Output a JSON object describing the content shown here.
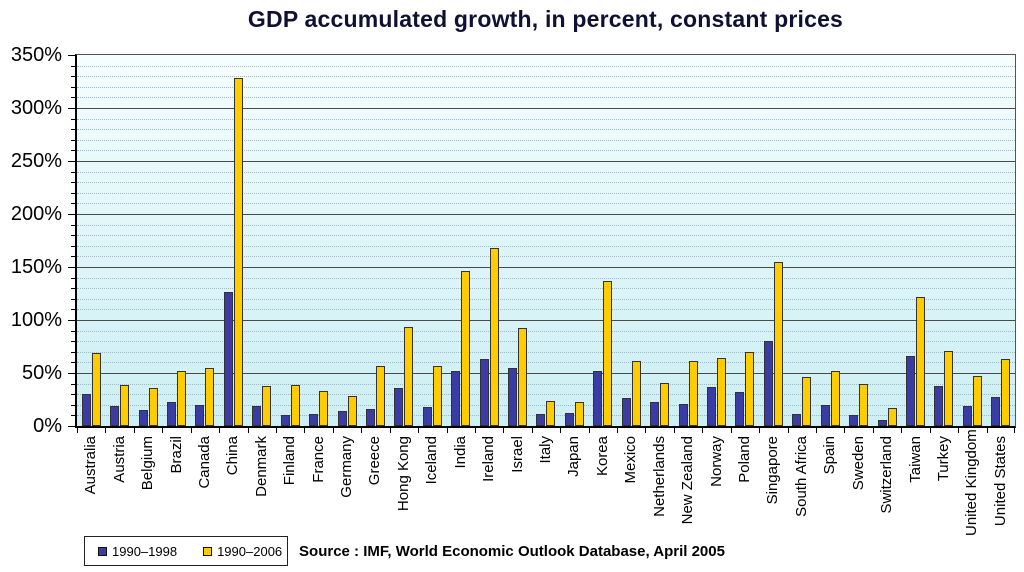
{
  "chart_data": {
    "type": "bar",
    "title": "GDP accumulated growth, in percent, constant prices",
    "source": "Source : IMF, World Economic Outlook Database, April 2005",
    "categories": [
      "Australia",
      "Austria",
      "Belgium",
      "Brazil",
      "Canada",
      "China",
      "Denmark",
      "Finland",
      "France",
      "Germany",
      "Greece",
      "Hong Kong",
      "Iceland",
      "India",
      "Ireland",
      "Israel",
      "Italy",
      "Japan",
      "Korea",
      "Mexico",
      "Netherlands",
      "New Zealand",
      "Norway",
      "Poland",
      "Singapore",
      "South Africa",
      "Spain",
      "Sweden",
      "Switzerland",
      "Taiwan",
      "Turkey",
      "United Kingdom",
      "United States"
    ],
    "series": [
      {
        "name": "1990–1998",
        "color": "#3b3ba6",
        "values": [
          30,
          19,
          15,
          23,
          20,
          126,
          19,
          10,
          11,
          14,
          16,
          36,
          18,
          52,
          63,
          55,
          11,
          12,
          52,
          26,
          23,
          21,
          37,
          32,
          80,
          11,
          20,
          10,
          6,
          66,
          38,
          19,
          27
        ]
      },
      {
        "name": "1990–2006",
        "color": "#ffcc00",
        "values": [
          69,
          39,
          36,
          52,
          55,
          328,
          38,
          39,
          33,
          28,
          57,
          93,
          57,
          146,
          168,
          92,
          24,
          23,
          137,
          61,
          41,
          61,
          64,
          70,
          155,
          46,
          52,
          40,
          17,
          122,
          71,
          47,
          63
        ]
      }
    ],
    "ylim": [
      0,
      350
    ],
    "ytick_step": 50,
    "yminor_step": 10,
    "ytick_labels": [
      "0%",
      "50%",
      "100%",
      "150%",
      "200%",
      "250%",
      "300%",
      "350%"
    ],
    "grid": {
      "major": "solid",
      "minor": "dotted"
    },
    "legend_position": "bottom-left",
    "plot_background": [
      "#f6fdfe",
      "#cdeff3"
    ],
    "gridline_major_color": "#4a4a4a",
    "gridline_minor_color": "#9fb9c9"
  }
}
